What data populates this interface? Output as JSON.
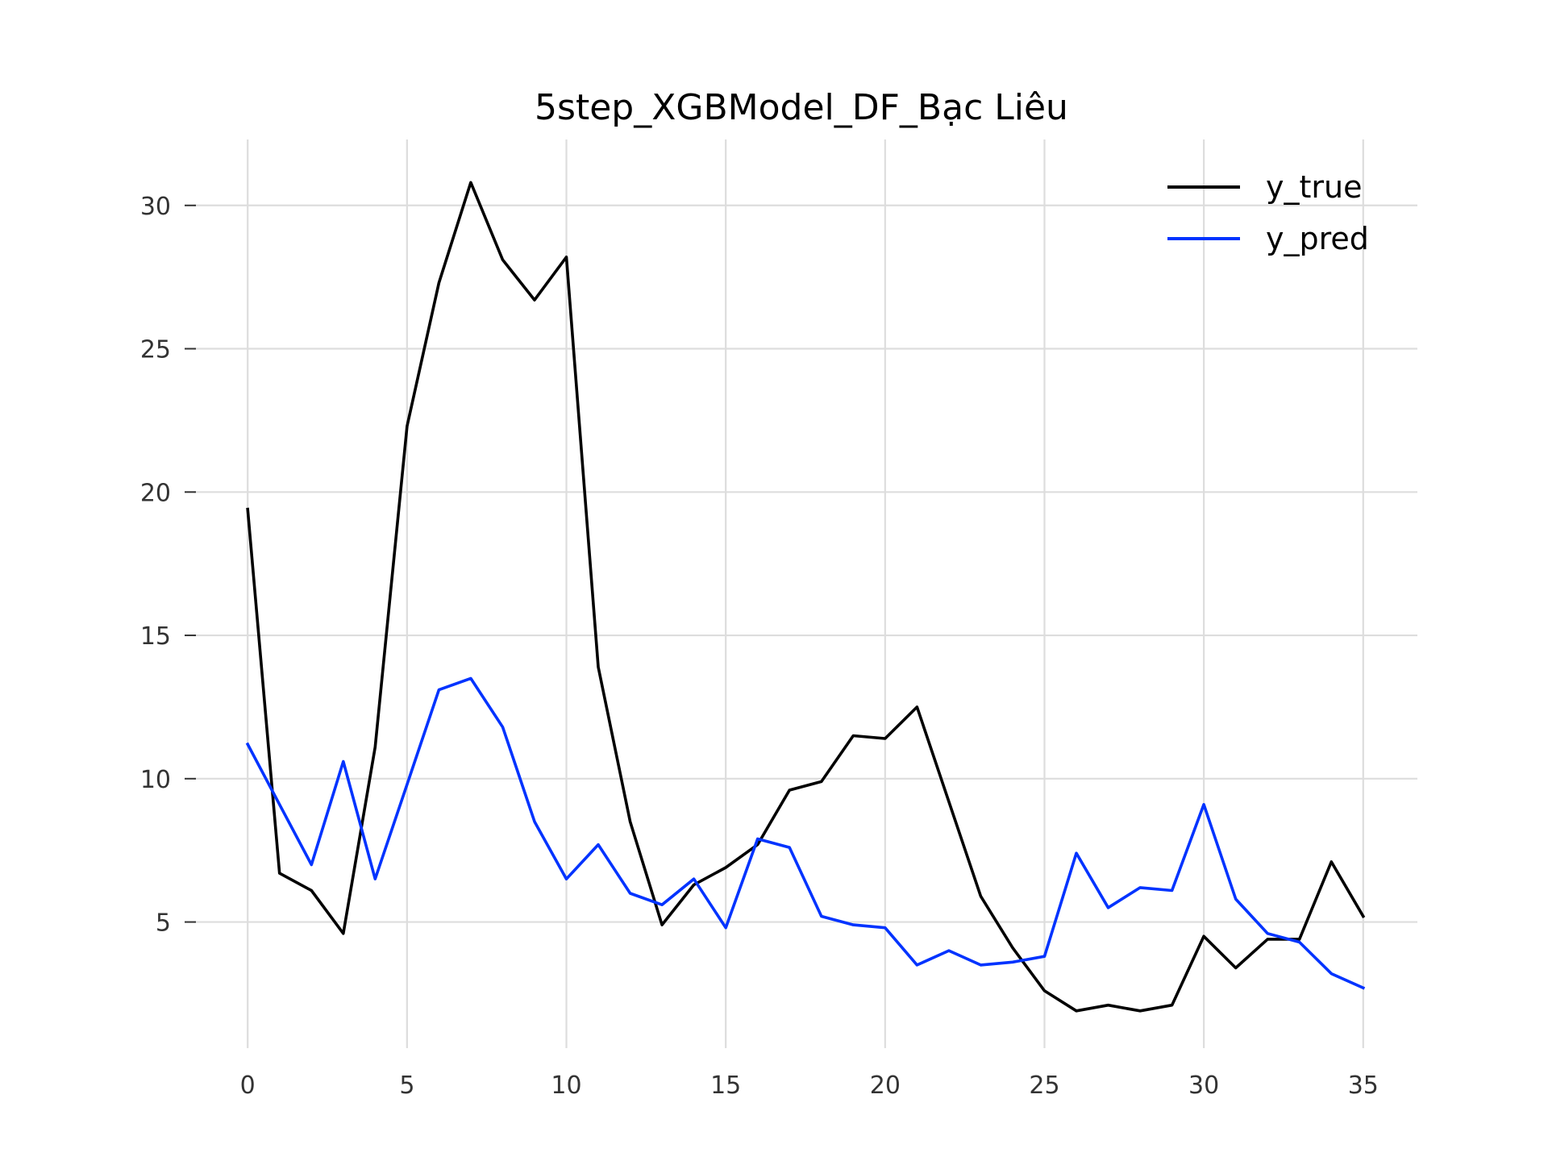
{
  "chart_data": {
    "type": "line",
    "title": "5step_XGBModel_DF_Bạc Liêu",
    "xlabel": "",
    "ylabel": "",
    "xlim": [
      -1.7,
      36.7
    ],
    "ylim": [
      0.6,
      32.3
    ],
    "xticks": [
      0,
      5,
      10,
      15,
      20,
      25,
      30,
      35
    ],
    "yticks": [
      5,
      10,
      15,
      20,
      25,
      30
    ],
    "grid": true,
    "legend_position": "top-right",
    "x": [
      0,
      1,
      2,
      3,
      4,
      5,
      6,
      7,
      8,
      9,
      10,
      11,
      12,
      13,
      14,
      15,
      16,
      17,
      18,
      19,
      20,
      21,
      22,
      23,
      24,
      25,
      26,
      27,
      28,
      29,
      30,
      31,
      32,
      33,
      34,
      35
    ],
    "series": [
      {
        "name": "y_true",
        "color": "#000000",
        "values": [
          19.4,
          6.7,
          6.1,
          4.6,
          11.1,
          22.3,
          27.3,
          30.8,
          28.1,
          26.7,
          28.2,
          13.9,
          8.5,
          4.9,
          6.3,
          6.9,
          7.7,
          9.6,
          9.9,
          11.5,
          11.4,
          12.5,
          9.2,
          5.9,
          4.1,
          2.6,
          1.9,
          2.1,
          1.9,
          2.1,
          4.5,
          3.4,
          4.4,
          4.4,
          7.1,
          5.2
        ]
      },
      {
        "name": "y_pred",
        "color": "#0033ff",
        "values": [
          11.2,
          9.1,
          7.0,
          10.6,
          6.5,
          9.8,
          13.1,
          13.5,
          11.8,
          8.5,
          6.5,
          7.7,
          6.0,
          5.6,
          6.5,
          4.8,
          7.9,
          7.6,
          5.2,
          4.9,
          4.8,
          3.5,
          4.0,
          3.5,
          3.6,
          3.8,
          7.4,
          5.5,
          6.2,
          6.1,
          9.1,
          5.8,
          4.6,
          4.3,
          3.2,
          2.7
        ]
      }
    ]
  }
}
